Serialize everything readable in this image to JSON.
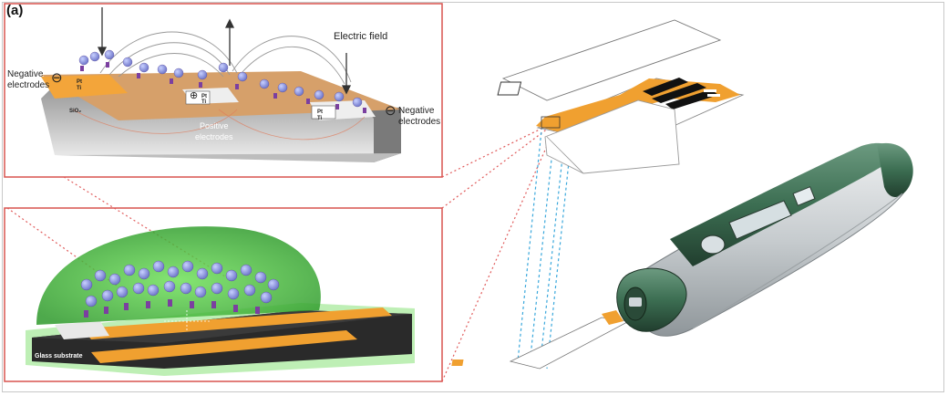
{
  "figure": {
    "panel_label": "(a)",
    "top_inset": {
      "electric_field": "Electric field",
      "negative_left": [
        "Negative",
        "electrodes"
      ],
      "negative_right": [
        "Negative",
        "electrodes"
      ],
      "positive": [
        "Positive",
        "electrodes"
      ],
      "pt": "Pt",
      "ti": "Ti",
      "sio2": "SiO₂",
      "minus_symbol": "⊖",
      "plus_symbol": "⊕"
    },
    "bottom_inset": {
      "substrate": "Glass substrate"
    },
    "colors": {
      "outline": "#d9534f",
      "connector_red": "#e05a5a",
      "connector_blue": "#3aa8dc",
      "gold": "#f0a030",
      "device_green": "#3c6e52",
      "device_grey": "#c9cdd0",
      "gel_green": "#5ccf4e",
      "antibody_purple": "#7b3fa0",
      "antigen_blue": "#7f8fd8"
    }
  }
}
